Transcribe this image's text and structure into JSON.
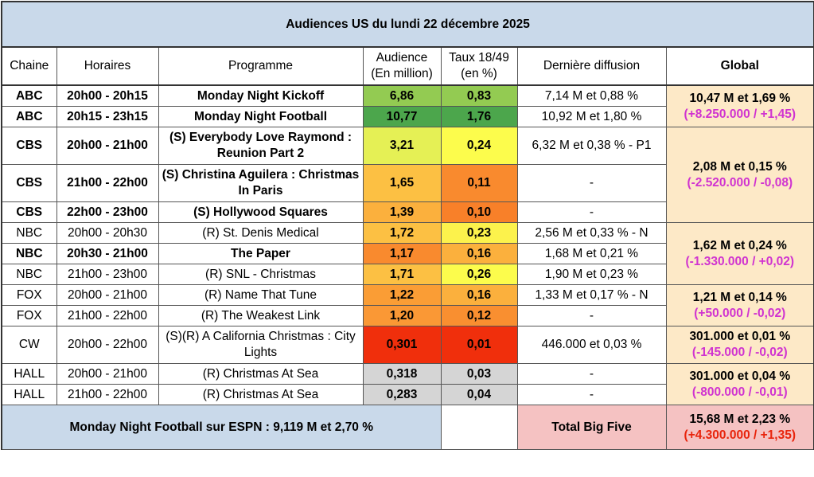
{
  "title": "Audiences US du lundi 22 décembre 2025",
  "headers": {
    "chaine": "Chaine",
    "horaires": "Horaires",
    "programme": "Programme",
    "audience_l1": "Audience",
    "audience_l2": "(En million)",
    "taux_l1": "Taux 18/49",
    "taux_l2": "(en %)",
    "derniere": "Dernière diffusion",
    "global": "Global"
  },
  "colors": {
    "green_dark": "#4ca64c",
    "green_light": "#93cb52",
    "yellow_green": "#d4e655",
    "yellow": "#fcfc4c",
    "yellow_orange": "#fde04e",
    "orange_light": "#fcc043",
    "orange": "#fa9d35",
    "orange_dark": "#f77b27",
    "red": "#f02f0c",
    "grey": "#d5d5d5",
    "global_bg": "#fde9c7",
    "title_bg": "#c9d9ea"
  },
  "rows": [
    {
      "chaine": "ABC",
      "horaires": "20h00 - 20h15",
      "programme": "Monday Night Kickoff",
      "audience": "6,86",
      "taux": "0,83",
      "derniere": "7,14 M et 0,88 %",
      "bold": true,
      "aud_color": "#93cb52",
      "taux_color": "#93cb52"
    },
    {
      "chaine": "ABC",
      "horaires": "20h15 - 23h15",
      "programme": "Monday Night Football",
      "audience": "10,77",
      "taux": "1,76",
      "derniere": "10,92 M et 1,80 %",
      "bold": true,
      "aud_color": "#4ca64c",
      "taux_color": "#4ca64c"
    },
    {
      "chaine": "CBS",
      "horaires": "20h00 - 21h00",
      "programme": "(S) Everybody Love Raymond : Reunion Part 2",
      "audience": "3,21",
      "taux": "0,24",
      "derniere": "6,32 M et 0,38 % - P1",
      "bold": true,
      "aud_color": "#e5f055",
      "taux_color": "#fcfc4c"
    },
    {
      "chaine": "CBS",
      "horaires": "21h00 - 22h00",
      "programme": "(S) Christina Aguilera : Christmas In Paris",
      "audience": "1,65",
      "taux": "0,11",
      "derniere": "-",
      "bold": true,
      "aud_color": "#fcc043",
      "taux_color": "#f98a2e"
    },
    {
      "chaine": "CBS",
      "horaires": "22h00 - 23h00",
      "programme": "(S) Hollywood Squares",
      "audience": "1,39",
      "taux": "0,10",
      "derniere": "-",
      "bold": true,
      "aud_color": "#fbb03d",
      "taux_color": "#f88029"
    },
    {
      "chaine": "NBC",
      "horaires": "20h00 - 20h30",
      "programme": "(R) St. Denis Medical",
      "audience": "1,72",
      "taux": "0,23",
      "derniere": "2,56 M et 0,33 % - N",
      "bold": false,
      "aud_color": "#fcc043",
      "taux_color": "#fcf24c"
    },
    {
      "chaine": "NBC",
      "horaires": "20h30 - 21h00",
      "programme": "The Paper",
      "audience": "1,17",
      "taux": "0,16",
      "derniere": "1,68 M et 0,21 %",
      "bold": true,
      "aud_color": "#f98a2e",
      "taux_color": "#fbb03d"
    },
    {
      "chaine": "NBC",
      "horaires": "21h00 - 23h00",
      "programme": "(R) SNL - Christmas",
      "audience": "1,71",
      "taux": "0,26",
      "derniere": "1,90 M et 0,23 %",
      "bold": false,
      "aud_color": "#fcc043",
      "taux_color": "#fcfc4c"
    },
    {
      "chaine": "FOX",
      "horaires": "20h00 - 21h00",
      "programme": "(R) Name That Tune",
      "audience": "1,22",
      "taux": "0,16",
      "derniere": "1,33 M et 0,17 % - N",
      "bold": false,
      "aud_color": "#fa9d35",
      "taux_color": "#fbb03d"
    },
    {
      "chaine": "FOX",
      "horaires": "21h00 - 22h00",
      "programme": "(R) The Weakest Link",
      "audience": "1,20",
      "taux": "0,12",
      "derniere": "-",
      "bold": false,
      "aud_color": "#fa9835",
      "taux_color": "#f98f30"
    },
    {
      "chaine": "CW",
      "horaires": "20h00 - 22h00",
      "programme": "(S)(R) A California Christmas : City Lights",
      "audience": "0,301",
      "taux": "0,01",
      "derniere": "446.000 et 0,03 %",
      "bold": false,
      "aud_color": "#f02f0c",
      "taux_color": "#f02f0c"
    },
    {
      "chaine": "HALL",
      "horaires": "20h00 - 21h00",
      "programme": "(R) Christmas At Sea",
      "audience": "0,318",
      "taux": "0,03",
      "derniere": "-",
      "bold": false,
      "aud_color": "#d5d5d5",
      "taux_color": "#d5d5d5"
    },
    {
      "chaine": "HALL",
      "horaires": "21h00 - 22h00",
      "programme": "(R) Christmas At Sea",
      "audience": "0,283",
      "taux": "0,04",
      "derniere": "-",
      "bold": false,
      "aud_color": "#d5d5d5",
      "taux_color": "#d5d5d5"
    }
  ],
  "globals": [
    {
      "line1": "10,47 M et 1,69 %",
      "line2": "(+8.250.000 / +1,45)"
    },
    {
      "line1": "2,08 M et 0,15 %",
      "line2": "(-2.520.000 / -0,08)"
    },
    {
      "line1": "1,62 M et 0,24 %",
      "line2": "(-1.330.000 / +0,02)"
    },
    {
      "line1": "1,21 M et 0,14 %",
      "line2": "(+50.000 / -0,02)"
    },
    {
      "line1": "301.000 et 0,01 %",
      "line2": "(-145.000 / -0,02)"
    },
    {
      "line1": "301.000 et 0,04 %",
      "line2": "(-800.000 / -0,01)"
    }
  ],
  "footer": {
    "espn": "Monday Night Football sur ESPN : 9,119 M et 2,70 %",
    "big_five_label": "Total Big Five",
    "total_line1": "15,68 M et 2,23 %",
    "total_line2": "(+4.300.000 / +1,35)"
  }
}
